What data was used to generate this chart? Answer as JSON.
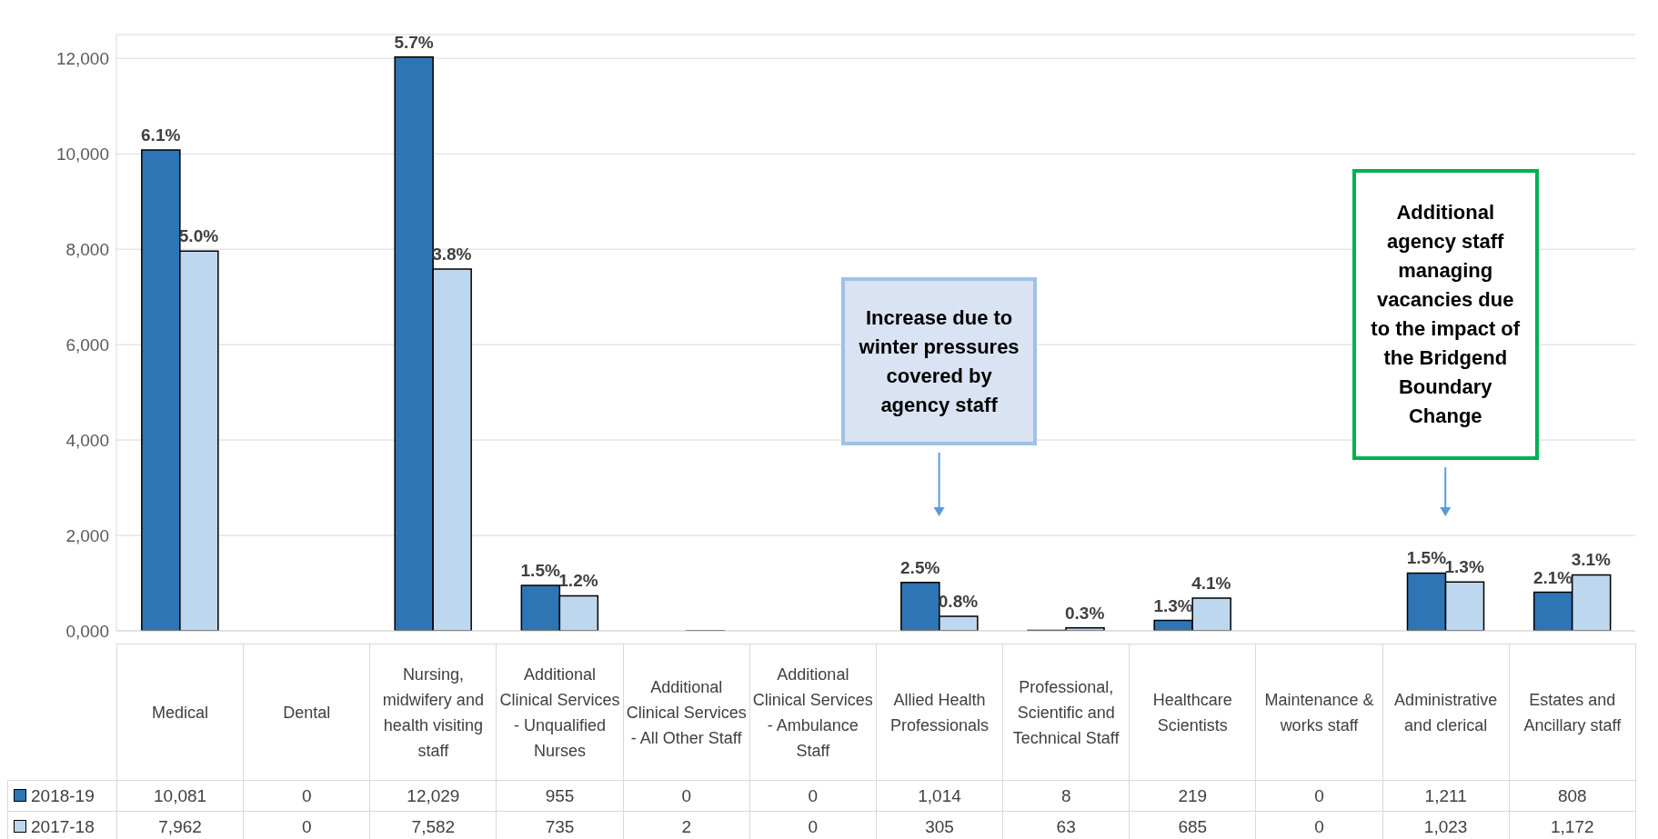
{
  "chart_data": {
    "type": "bar",
    "categories": [
      "Medical",
      "Dental",
      "Nursing, midwifery and health visiting staff",
      "Additional Clinical Services - Unqualified Nurses",
      "Additional Clinical Services - All Other Staff",
      "Additional Clinical Services - Ambulance Staff",
      "Allied Health Professionals",
      "Professional, Scientific and Technical Staff",
      "Healthcare Scientists",
      "Maintenance & works staff",
      "Administrative and clerical",
      "Estates and Ancillary staff"
    ],
    "series": [
      {
        "name": "2018-19",
        "color": "#2e75b6",
        "values": [
          10081,
          0,
          12029,
          955,
          0,
          0,
          1014,
          8,
          219,
          0,
          1211,
          808
        ],
        "value_labels": [
          "10,081",
          "0",
          "12,029",
          "955",
          "0",
          "0",
          "1,014",
          "8",
          "219",
          "0",
          "1,211",
          "808"
        ]
      },
      {
        "name": "2017-18",
        "color": "#bdd7ee",
        "values": [
          7962,
          0,
          7582,
          735,
          2,
          0,
          305,
          63,
          685,
          0,
          1023,
          1172
        ],
        "value_labels": [
          "7,962",
          "0",
          "7,582",
          "735",
          "2",
          "0",
          "305",
          "63",
          "685",
          "0",
          "1,023",
          "1,172"
        ]
      }
    ],
    "ylim": [
      0,
      12500
    ],
    "yticks": [
      {
        "value": 0,
        "label": "0,000"
      },
      {
        "value": 2000,
        "label": "2,000"
      },
      {
        "value": 4000,
        "label": "4,000"
      },
      {
        "value": 6000,
        "label": "6,000"
      },
      {
        "value": 8000,
        "label": "8,000"
      },
      {
        "value": 10000,
        "label": "10,000"
      },
      {
        "value": 12000,
        "label": "12,000"
      }
    ],
    "grid": "y",
    "legend": "bottom",
    "annotations": [
      "Increase due to winter pressures covered by agency staff",
      "Additional agency staff managing vacancies due to the impact of the Bridgend Boundary Change",
      {
        "text": "6.1%",
        "x": "Medical",
        "y": 10081
      },
      {
        "text": "5.0%",
        "x": "Medical",
        "y": 7962
      },
      {
        "text": "5.7%",
        "x": "Nursing, midwifery and health visiting staff",
        "y": 12029
      },
      {
        "text": "3.8%",
        "x": "Nursing, midwifery and health visiting staff",
        "y": 7582
      },
      {
        "text": "1.5%",
        "x": "Additional Clinical Services - Unqualified Nurses",
        "y": 955
      },
      {
        "text": "1.2%",
        "x": "Additional Clinical Services - Unqualified Nurses",
        "y": 735
      },
      {
        "text": "2.5%",
        "x": "Allied Health Professionals",
        "y": 1014
      },
      {
        "text": "0.8%",
        "x": "Allied Health Professionals",
        "y": 305
      },
      {
        "text": "0.3%",
        "x": "Professional, Scientific and Technical Staff",
        "y": 63
      },
      {
        "text": "1.3%",
        "x": "Healthcare Scientists",
        "y": 219
      },
      {
        "text": "4.1%",
        "x": "Healthcare Scientists",
        "y": 685
      },
      {
        "text": "1.5%",
        "x": "Administrative and clerical",
        "y": 1211
      },
      {
        "text": "1.3%",
        "x": "Administrative and clerical",
        "y": 1023
      },
      {
        "text": "2.1%",
        "x": "Estates and Ancillary staff",
        "y": 808
      },
      {
        "text": "3.1%",
        "x": "Estates and Ancillary staff",
        "y": 1172
      }
    ]
  }
}
